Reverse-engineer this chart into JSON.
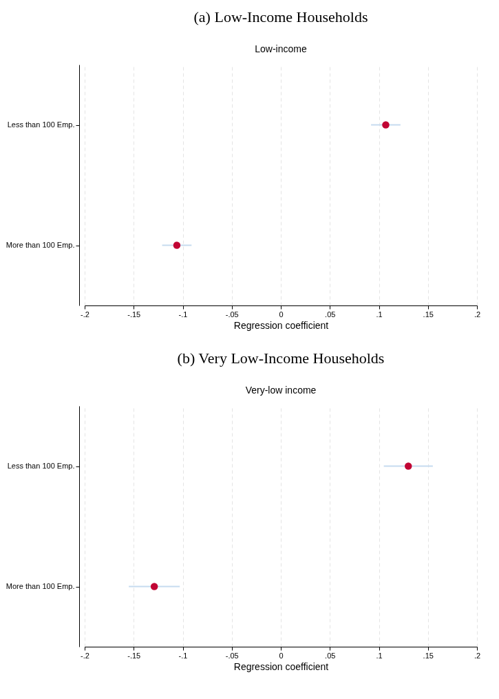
{
  "chart_data": [
    {
      "type": "scatter",
      "title": "(a) Low-Income Households",
      "subtitle": "Low-income",
      "xlabel": "Regression coefficient",
      "orientation": "horizontal",
      "categories": [
        "Less than 100 Emp.",
        "More than 100 Emp."
      ],
      "series": [
        {
          "color": "#c10534",
          "values": [
            0.107,
            -0.106
          ],
          "errors": [
            [
              0.092,
              0.122
            ],
            [
              -0.121,
              -0.091
            ]
          ]
        }
      ],
      "xlim": [
        -0.2,
        0.2
      ],
      "xticks": [
        {
          "value": -0.2,
          "label": "-.2"
        },
        {
          "value": -0.15,
          "label": "-.15"
        },
        {
          "value": -0.1,
          "label": "-.1"
        },
        {
          "value": -0.05,
          "label": "-.05"
        },
        0,
        {
          "value": 0.05,
          "label": ".05"
        },
        {
          "value": 0.1,
          "label": ".1"
        },
        {
          "value": 0.15,
          "label": ".15"
        },
        {
          "value": 0.2,
          "label": ".2"
        }
      ],
      "grid": "x",
      "marker": "circle",
      "legend": false
    },
    {
      "type": "scatter",
      "title": "(b) Very Low-Income Households",
      "subtitle": "Very-low income",
      "xlabel": "Regression coefficient",
      "orientation": "horizontal",
      "categories": [
        "Less than 100 Emp.",
        "More than 100 Emp."
      ],
      "series": [
        {
          "color": "#c10534",
          "values": [
            0.13,
            -0.129
          ],
          "errors": [
            [
              0.105,
              0.155
            ],
            [
              -0.155,
              -0.103
            ]
          ]
        }
      ],
      "xlim": [
        -0.2,
        0.2
      ],
      "xticks": [
        {
          "value": -0.2,
          "label": "-.2"
        },
        {
          "value": -0.15,
          "label": "-.15"
        },
        {
          "value": -0.1,
          "label": "-.1"
        },
        {
          "value": -0.05,
          "label": "-.05"
        },
        0,
        {
          "value": 0.05,
          "label": ".05"
        },
        {
          "value": 0.1,
          "label": ".1"
        },
        {
          "value": 0.15,
          "label": ".15"
        },
        {
          "value": 0.2,
          "label": ".2"
        }
      ],
      "grid": "x",
      "marker": "circle",
      "legend": false
    }
  ]
}
